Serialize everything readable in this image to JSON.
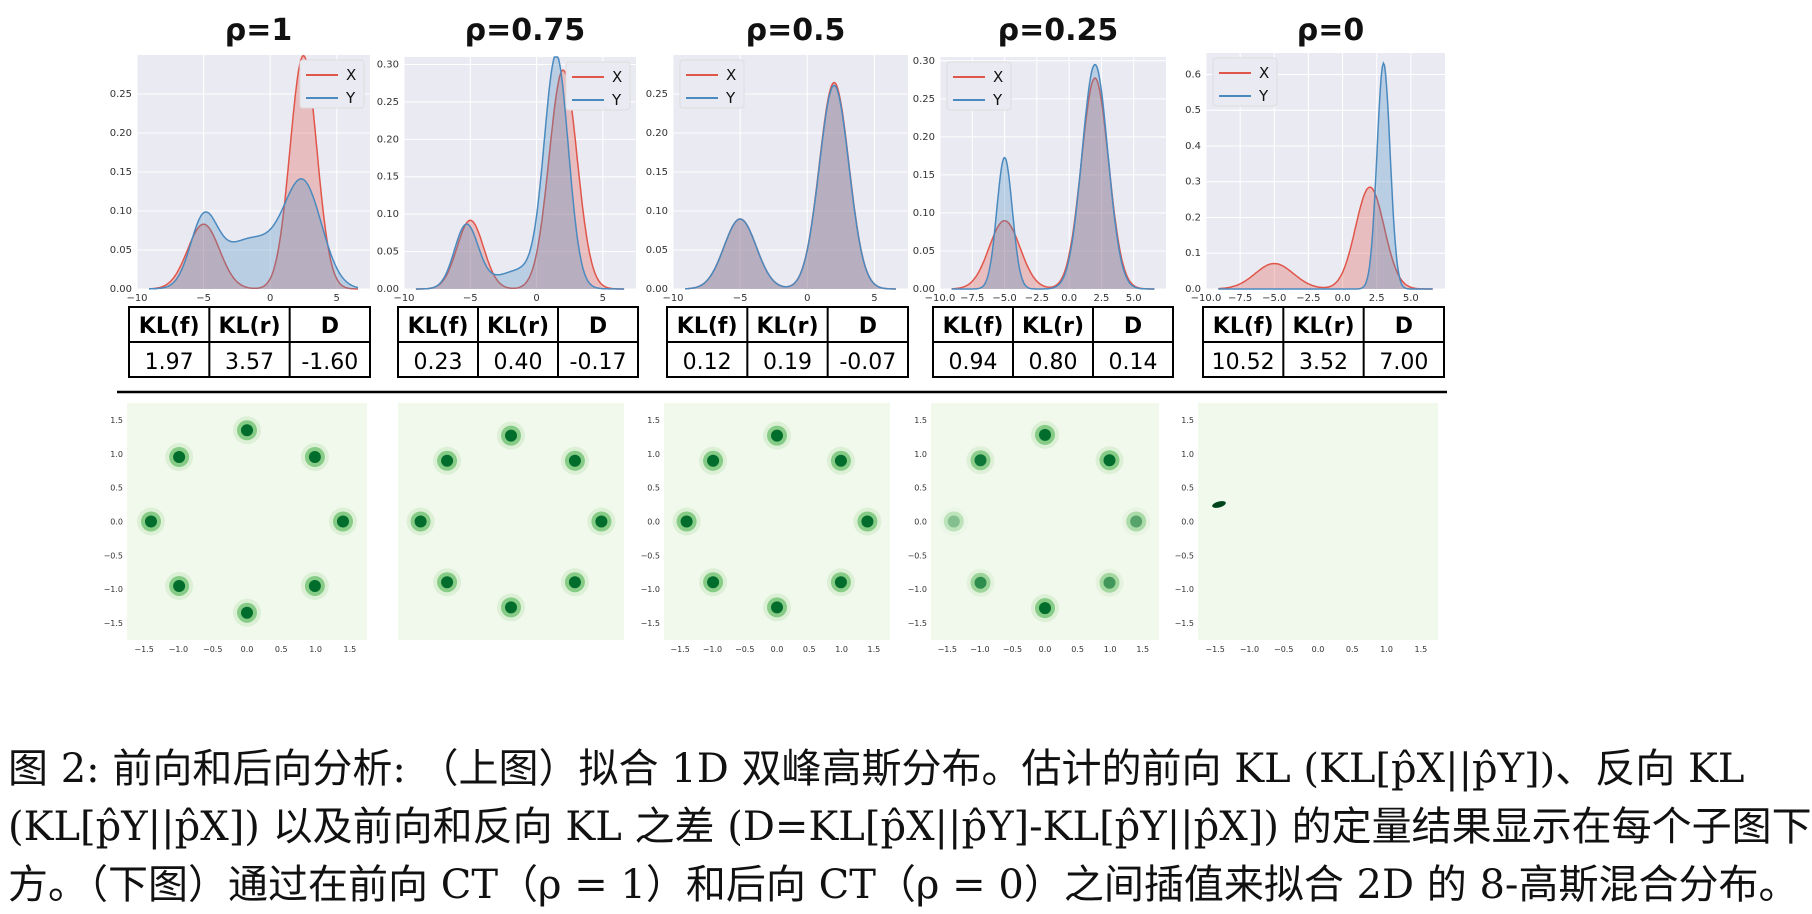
{
  "chart_data": {
    "type": "composite",
    "panels": [
      {
        "rho_label": "ρ=1",
        "series": [
          {
            "name": "X",
            "color": "#e0564a",
            "components": [
              {
                "mu": -5,
                "sigma": 1.2,
                "w": 0.25
              },
              {
                "mu": 2.5,
                "sigma": 1.0,
                "w": 0.75
              }
            ]
          },
          {
            "name": "Y",
            "color": "#4a8abf",
            "components": [
              {
                "mu": -5,
                "sigma": 1.0,
                "w": 0.2
              },
              {
                "mu": -1.5,
                "sigma": 2.2,
                "w": 0.35
              },
              {
                "mu": 2.5,
                "sigma": 1.4,
                "w": 0.45
              }
            ]
          }
        ],
        "xlim": [
          -10,
          7.5
        ],
        "ylim": [
          0,
          0.3
        ],
        "xticks": [
          -10,
          -5,
          0,
          5
        ],
        "yticks": [
          0.0,
          0.05,
          0.1,
          0.15,
          0.2,
          0.25
        ],
        "kl_f": "1.97",
        "kl_r": "3.57",
        "d": "-1.60",
        "scatter_type": "ring",
        "scatter_ticks": [
          -1.5,
          -1.0,
          -0.5,
          0.0,
          0.5,
          1.0,
          1.5
        ],
        "weights": [
          1,
          1,
          1,
          1,
          1,
          1,
          1,
          1
        ]
      },
      {
        "rho_label": "ρ=0.75",
        "series": [
          {
            "name": "X",
            "color": "#e0564a",
            "components": [
              {
                "mu": -5,
                "sigma": 1.0,
                "w": 0.23
              },
              {
                "mu": 2.0,
                "sigma": 1.05,
                "w": 0.77
              }
            ]
          },
          {
            "name": "Y",
            "color": "#4a8abf",
            "components": [
              {
                "mu": -5.3,
                "sigma": 0.9,
                "w": 0.19
              },
              {
                "mu": 1.5,
                "sigma": 0.9,
                "w": 0.68
              },
              {
                "mu": -1,
                "sigma": 2,
                "w": 0.13
              }
            ]
          }
        ],
        "xlim": [
          -10,
          7.5
        ],
        "ylim": [
          0,
          0.31
        ],
        "xticks": [
          -10,
          -5,
          0,
          5
        ],
        "yticks": [
          0.0,
          0.05,
          0.1,
          0.15,
          0.2,
          0.25,
          0.3
        ],
        "kl_f": "0.23",
        "kl_r": "0.40",
        "d": "-0.17",
        "scatter_type": "ring",
        "scatter_ticks": [],
        "weights": [
          1,
          1,
          1,
          1,
          1,
          1,
          1,
          1
        ]
      },
      {
        "rho_label": "ρ=0.5",
        "series": [
          {
            "name": "X",
            "color": "#e0564a",
            "components": [
              {
                "mu": -5,
                "sigma": 1.2,
                "w": 0.27
              },
              {
                "mu": 2,
                "sigma": 1.1,
                "w": 0.73
              }
            ]
          },
          {
            "name": "Y",
            "color": "#4a8abf",
            "components": [
              {
                "mu": -5,
                "sigma": 1.2,
                "w": 0.27
              },
              {
                "mu": 2,
                "sigma": 1.1,
                "w": 0.72
              }
            ]
          }
        ],
        "xlim": [
          -10,
          7.5
        ],
        "ylim": [
          0,
          0.3
        ],
        "xticks": [
          -10,
          -5,
          0,
          5
        ],
        "yticks": [
          0.0,
          0.05,
          0.1,
          0.15,
          0.2,
          0.25
        ],
        "kl_f": "0.12",
        "kl_r": "0.19",
        "d": "-0.07",
        "scatter_type": "ring",
        "scatter_ticks": [
          -1.5,
          -1.0,
          -0.5,
          0.0,
          0.5,
          1.0,
          1.5
        ],
        "weights": [
          1,
          1,
          1,
          1,
          1,
          1,
          1,
          1
        ]
      },
      {
        "rho_label": "ρ=0.25",
        "series": [
          {
            "name": "X",
            "color": "#e0564a",
            "components": [
              {
                "mu": -5,
                "sigma": 1.2,
                "w": 0.27
              },
              {
                "mu": 2,
                "sigma": 1.05,
                "w": 0.73
              }
            ]
          },
          {
            "name": "Y",
            "color": "#4a8abf",
            "components": [
              {
                "mu": -5,
                "sigma": 0.6,
                "w": 0.26
              },
              {
                "mu": 2,
                "sigma": 1.0,
                "w": 0.74
              }
            ]
          }
        ],
        "xlim": [
          -10,
          7.5
        ],
        "ylim": [
          0,
          0.305
        ],
        "xticks": [
          -10.0,
          -7.5,
          -5.0,
          -2.5,
          0.0,
          2.5,
          5.0
        ],
        "yticks": [
          0.0,
          0.05,
          0.1,
          0.15,
          0.2,
          0.25,
          0.3
        ],
        "kl_f": "0.94",
        "kl_r": "0.80",
        "d": "0.14",
        "scatter_type": "ring",
        "scatter_ticks": [
          -1.5,
          -1.0,
          -0.5,
          0.0,
          0.5,
          1.0,
          1.5
        ],
        "weights": [
          1,
          1,
          0.5,
          0.6,
          1,
          0.7,
          0.3,
          0.9
        ]
      },
      {
        "rho_label": "ρ=0",
        "series": [
          {
            "name": "X",
            "color": "#e0564a",
            "components": [
              {
                "mu": -5,
                "sigma": 1.4,
                "w": 0.25
              },
              {
                "mu": 2,
                "sigma": 1.05,
                "w": 0.75
              }
            ]
          },
          {
            "name": "Y",
            "color": "#4a8abf",
            "components": [
              {
                "mu": 3,
                "sigma": 0.48,
                "w": 0.76
              }
            ]
          }
        ],
        "xlim": [
          -10,
          7.5
        ],
        "ylim": [
          0,
          0.66
        ],
        "xticks": [
          -10.0,
          -7.5,
          -5.0,
          -2.5,
          0.0,
          2.5,
          5.0
        ],
        "yticks": [
          0.0,
          0.1,
          0.2,
          0.3,
          0.4,
          0.5,
          0.6
        ],
        "kl_f": "10.52",
        "kl_r": "3.52",
        "d": "7.00",
        "scatter_type": "collapsed",
        "scatter_ticks": [
          -1.5,
          -1.0,
          -0.5,
          0.0,
          0.5,
          1.0,
          1.5
        ],
        "weights": []
      }
    ],
    "table_headers": [
      "KL(f)",
      "KL(r)",
      "D"
    ],
    "legend_labels": [
      "X",
      "Y"
    ]
  },
  "caption": {
    "line1": "图 2: 前向和后向分析: （上图）拟合 1D 双峰高斯分布。估计的前向 KL (KL[p̂X||p̂Y])、反向 KL",
    "line2": "(KL[p̂Y||p̂X]) 以及前向和反向 KL 之差 (D=KL[p̂X||p̂Y]-KL[p̂Y||p̂X]) 的定量结果显示在每个子图下",
    "line3": "方。（下图）通过在前向 CT（ρ = 1）和后向 CT（ρ = 0）之间插值来拟合 2D 的 8-高斯混合分布。"
  }
}
